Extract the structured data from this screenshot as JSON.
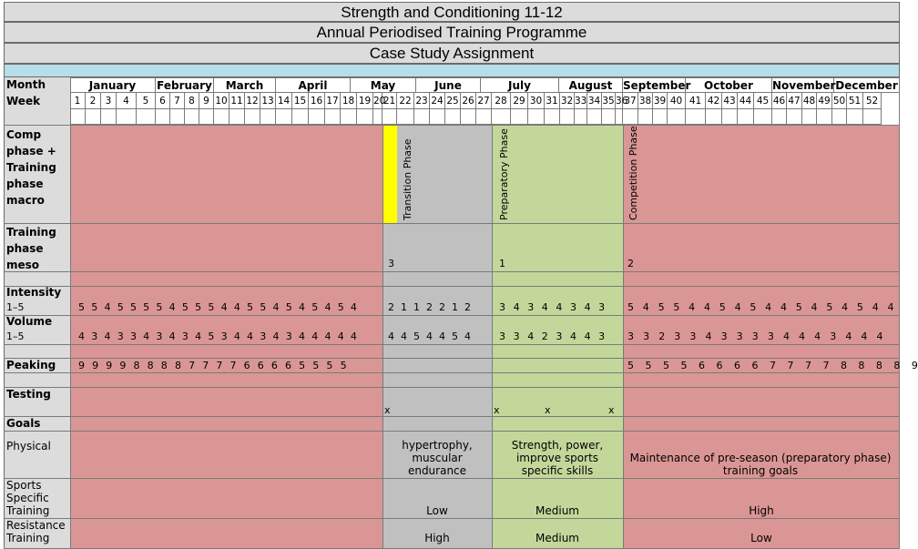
{
  "titles": {
    "line1": "Strength and Conditioning 11-12",
    "line2": "Annual Periodised Training Programme",
    "line3": "Case Study Assignment"
  },
  "labels": {
    "month": "Month",
    "week": "Week",
    "comp_phase": "Comp phase + Training phase macro",
    "training_meso": "Training phase meso",
    "intensity": "Intensity",
    "intensity_range": "1–5",
    "volume": "Volume",
    "volume_range": "1–5",
    "peaking": "Peaking",
    "testing": "Testing",
    "goals": "Goals",
    "physical": "Physical",
    "sports_specific": "Sports Specific Training",
    "resistance": "Resistance Training"
  },
  "months": [
    "January",
    "February",
    "March",
    "April",
    "May",
    "June",
    "July",
    "August",
    "September",
    "October",
    "November",
    "December"
  ],
  "weeks": [
    "1",
    "2",
    "3",
    "4",
    "5",
    "6",
    "7",
    "8",
    "9",
    "10",
    "11",
    "12",
    "13",
    "14",
    "15",
    "16",
    "17",
    "18",
    "19",
    "20",
    "21",
    "22",
    "23",
    "24",
    "25",
    "26",
    "27",
    "28",
    "29",
    "30",
    "31",
    "32",
    "33",
    "34",
    "35",
    "36",
    "37",
    "38",
    "39",
    "40",
    "41",
    "42",
    "43",
    "44",
    "45",
    "46",
    "47",
    "48",
    "49",
    "50",
    "51",
    "52"
  ],
  "phases": {
    "transition": "Transition Phase",
    "preparatory": "Preparatory Phase",
    "competition": "Competition Phase"
  },
  "meso": {
    "transition": "3",
    "preparatory": "1",
    "competition": "2"
  },
  "intensity_rows": {
    "a": "5 5 4 5 5 5 5 4 5 5 5 4 4 5 5 4 5 4 5 4 5 4",
    "b": "2 1 1 2 2 1 2",
    "c": "3 4 3 4 4 3 4 3",
    "d": "5 4 5 5 4 4 5 4 5 4 4 5 4 5 4 5 4 4"
  },
  "volume_rows": {
    "a": "4 3 4 3 3 4 3 4 3 4 5 3 4 4 3 4 3 4 4 4 4 4",
    "b": "4 4 5 4 4 5 4",
    "c": "3 3 4 2 3 4 4 3",
    "d": "3 3 2 3 3 4 3 3 3 3 4 4 4 3 4 4 4"
  },
  "peaking_rows": {
    "a": "9 9 9 9 8 8 8 8 7 7 7 7 6 6 6 6 5 5 5 5",
    "d": "5 5 5 5 6 6 6 6 7 7 7 7 8 8 8 8 9"
  },
  "testing_marks": [
    "x",
    "x",
    "x",
    "x"
  ],
  "goals": {
    "transition": "hypertrophy, muscular endurance",
    "preparatory": "Strength, power, improve sports specific skills",
    "competition": "Maintenance of pre-season (preparatory phase) training goals"
  },
  "sports_specific": {
    "transition": "Low",
    "preparatory": "Medium",
    "competition": "High"
  },
  "resistance": {
    "transition": "High",
    "preparatory": "Medium",
    "competition": "Low"
  },
  "colors": {
    "red": "#da9694",
    "grey": "#c0c0c0",
    "green": "#c4d79b",
    "yellow": "#ffff00",
    "header_grey": "#dcdcdc",
    "light_blue": "#b7dde8"
  }
}
